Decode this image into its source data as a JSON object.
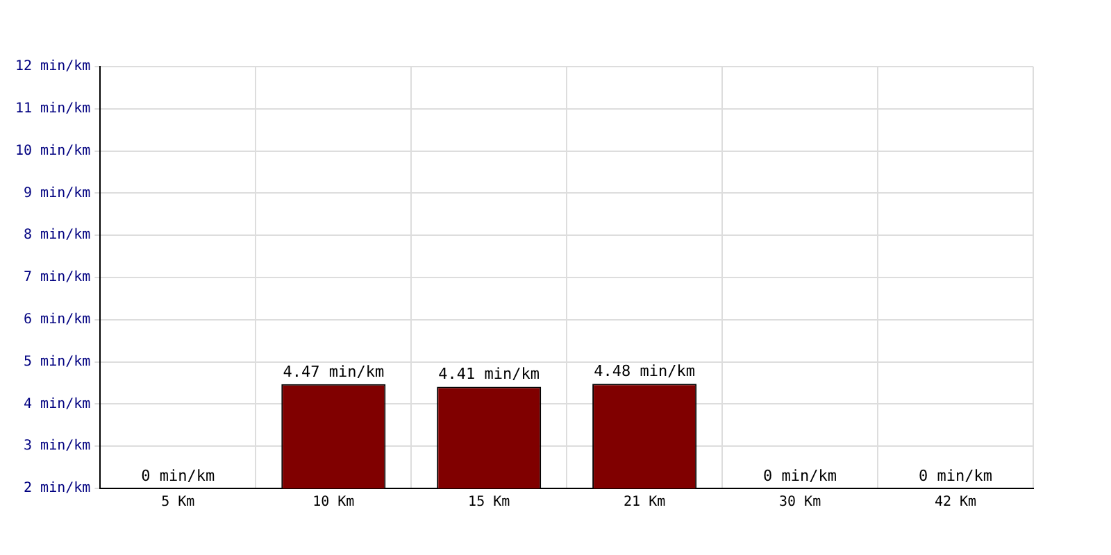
{
  "chart_data": {
    "type": "bar",
    "categories": [
      "5 Km",
      "10 Km",
      "15 Km",
      "21 Km",
      "30 Km",
      "42 Km"
    ],
    "values": [
      null,
      4.47,
      4.41,
      4.48,
      null,
      null
    ],
    "value_labels": [
      "0 min/km",
      "4.47 min/km",
      "4.41 min/km",
      "4.48 min/km",
      "0 min/km",
      "0 min/km"
    ],
    "color": "#800000",
    "ylim": [
      2,
      12
    ],
    "yticks": [
      {
        "value": 2,
        "label": "2 min/km"
      },
      {
        "value": 3,
        "label": "3 min/km"
      },
      {
        "value": 4,
        "label": "4 min/km"
      },
      {
        "value": 5,
        "label": "5 min/km"
      },
      {
        "value": 6,
        "label": "6 min/km"
      },
      {
        "value": 7,
        "label": "7 min/km"
      },
      {
        "value": 8,
        "label": "8 min/km"
      },
      {
        "value": 9,
        "label": "9 min/km"
      },
      {
        "value": 10,
        "label": "10 min/km"
      },
      {
        "value": 11,
        "label": "11 min/km"
      },
      {
        "value": 12,
        "label": "12 min/km"
      }
    ],
    "grid": true
  }
}
